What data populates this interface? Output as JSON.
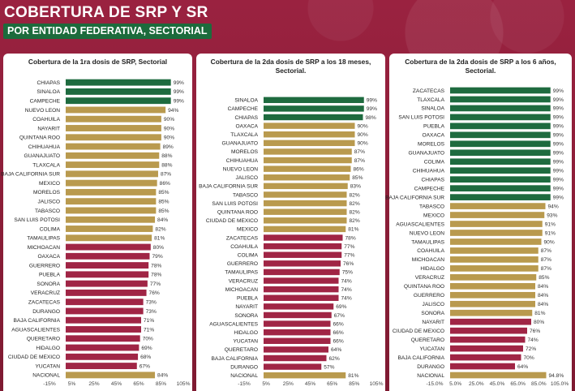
{
  "header": {
    "title": "COBERTURA DE SRP Y SR",
    "subtitle": "POR ENTIDAD FEDERATIVA, SECTORIAL"
  },
  "colors": {
    "high": "#1e6b3f",
    "mid": "#b99a4e",
    "low": "#a02545"
  },
  "chart_data": [
    {
      "type": "bar",
      "title": "Cobertura de la 1ra dosis de SRP, Sectorial",
      "categories": [
        "CHIAPAS",
        "SINALOA",
        "CAMPECHE",
        "NUEVO LEON",
        "COAHUILA",
        "NAYARIT",
        "QUINTANA ROO",
        "CHIHUAHUA",
        "GUANAJUATO",
        "TLAXCALA",
        "BAJA CALIFORNIA SUR",
        "MEXICO",
        "MORELOS",
        "JALISCO",
        "TABASCO",
        "SAN LUIS POTOSI",
        "COLIMA",
        "TAMAULIPAS",
        "MICHOACAN",
        "OAXACA",
        "GUERRERO",
        "PUEBLA",
        "SONORA",
        "VERACRUZ",
        "ZACATECAS",
        "DURANGO",
        "BAJA CALIFORNIA",
        "AGUASCALIENTES",
        "QUERETARO",
        "HIDALGO",
        "CIUDAD DE MEXICO",
        "YUCATAN",
        "NACIONAL"
      ],
      "values": [
        99,
        99,
        99,
        94,
        90,
        90,
        90,
        89,
        88,
        88,
        87,
        86,
        85,
        85,
        85,
        84,
        82,
        81,
        80,
        79,
        78,
        78,
        77,
        76,
        73,
        73,
        71,
        71,
        70,
        69,
        68,
        67,
        84
      ],
      "value_labels": [
        "99%",
        "99%",
        "99%",
        "94%",
        "90%",
        "90%",
        "90%",
        "89%",
        "88%",
        "88%",
        "87%",
        "86%",
        "85%",
        "85%",
        "85%",
        "84%",
        "82%",
        "81%",
        "80%",
        "79%",
        "78%",
        "78%",
        "77%",
        "76%",
        "73%",
        "73%",
        "71%",
        "71%",
        "70%",
        "69%",
        "68%",
        "67%",
        "84%"
      ],
      "groups": [
        "high",
        "high",
        "high",
        "mid",
        "mid",
        "mid",
        "mid",
        "mid",
        "mid",
        "mid",
        "mid",
        "mid",
        "mid",
        "mid",
        "mid",
        "mid",
        "mid",
        "mid",
        "low",
        "low",
        "low",
        "low",
        "low",
        "low",
        "low",
        "low",
        "low",
        "low",
        "low",
        "low",
        "low",
        "low",
        "mid"
      ],
      "ticks": [
        "-15%",
        "5%",
        "25%",
        "45%",
        "65%",
        "85%",
        "105%"
      ],
      "xlim": [
        -15,
        105
      ]
    },
    {
      "type": "bar",
      "title": "Cobertura de la 2da dosis de SRP a los 18 meses, Sectorial.",
      "categories": [
        "SINALOA",
        "CAMPECHE",
        "CHIAPAS",
        "OAXACA",
        "TLAXCALA",
        "GUANAJUATO",
        "MORELOS",
        "CHIHUAHUA",
        "NUEVO LEON",
        "JALISCO",
        "BAJA CALIFORNIA SUR",
        "TABASCO",
        "SAN LUIS POTOSI",
        "QUINTANA ROO",
        "CIUDAD DE MEXICO",
        "MEXICO",
        "ZACATECAS",
        "COAHUILA",
        "COLIMA",
        "GUERRERO",
        "TAMAULIPAS",
        "VERACRUZ",
        "MICHOACAN",
        "PUEBLA",
        "NAYARIT",
        "SONORA",
        "AGUASCALIENTES",
        "HIDALGO",
        "YUCATAN",
        "QUERETARO",
        "BAJA CALIFORNIA",
        "DURANGO",
        "NACIONAL"
      ],
      "values": [
        99,
        99,
        98,
        90,
        90,
        90,
        87,
        87,
        86,
        85,
        83,
        82,
        82,
        82,
        82,
        81,
        78,
        77,
        77,
        76,
        75,
        74,
        74,
        74,
        69,
        67,
        66,
        66,
        66,
        64,
        62,
        57,
        81
      ],
      "value_labels": [
        "99%",
        "99%",
        "98%",
        "90%",
        "90%",
        "90%",
        "87%",
        "87%",
        "86%",
        "85%",
        "83%",
        "82%",
        "82%",
        "82%",
        "82%",
        "81%",
        "78%",
        "77%",
        "77%",
        "76%",
        "75%",
        "74%",
        "74%",
        "74%",
        "69%",
        "67%",
        "66%",
        "66%",
        "66%",
        "64%",
        "62%",
        "57%",
        "81%"
      ],
      "groups": [
        "high",
        "high",
        "high",
        "mid",
        "mid",
        "mid",
        "mid",
        "mid",
        "mid",
        "mid",
        "mid",
        "mid",
        "mid",
        "mid",
        "mid",
        "mid",
        "low",
        "low",
        "low",
        "low",
        "low",
        "low",
        "low",
        "low",
        "low",
        "low",
        "low",
        "low",
        "low",
        "low",
        "low",
        "low",
        "mid"
      ],
      "ticks": [
        "-15%",
        "5%",
        "25%",
        "45%",
        "65%",
        "85%",
        "105%"
      ],
      "xlim": [
        -15,
        105
      ]
    },
    {
      "type": "bar",
      "title": "Cobertura de la 2da dosis de SRP a los 6 años, Sectorial.",
      "categories": [
        "ZACATECAS",
        "TLAXCALA",
        "SINALOA",
        "SAN LUIS POTOSI",
        "PUEBLA",
        "OAXACA",
        "MORELOS",
        "GUANAJUATO",
        "COLIMA",
        "CHIHUAHUA",
        "CHIAPAS",
        "CAMPECHE",
        "BAJA CALIFORNIA SUR",
        "TABASCO",
        "MEXICO",
        "AGUASCALIENTES",
        "NUEVO LEON",
        "TAMAULIPAS",
        "COAHUILA",
        "MICHOACAN",
        "HIDALGO",
        "VERACRUZ",
        "QUINTANA ROO",
        "GUERRERO",
        "JALISCO",
        "SONORA",
        "NAYARIT",
        "CIUDAD DE MEXICO",
        "QUERETARO",
        "YUCATAN",
        "BAJA CALIFORNIA",
        "DURANGO",
        "NACIONAL"
      ],
      "values": [
        99,
        99,
        99,
        99,
        99,
        99,
        99,
        99,
        99,
        99,
        99,
        99,
        99,
        94,
        93,
        91,
        91,
        90,
        87,
        87,
        87,
        85,
        84,
        84,
        84,
        81,
        80,
        76,
        74,
        72,
        70,
        64,
        94.8
      ],
      "value_labels": [
        "99%",
        "99%",
        "99%",
        "99%",
        "99%",
        "99%",
        "99%",
        "99%",
        "99%",
        "99%",
        "99%",
        "99%",
        "99%",
        "94%",
        "93%",
        "91%",
        "91%",
        "90%",
        "87%",
        "87%",
        "87%",
        "85%",
        "84%",
        "84%",
        "84%",
        "81%",
        "80%",
        "76%",
        "74%",
        "72%",
        "70%",
        "64%",
        "94.8%"
      ],
      "groups": [
        "high",
        "high",
        "high",
        "high",
        "high",
        "high",
        "high",
        "high",
        "high",
        "high",
        "high",
        "high",
        "high",
        "mid",
        "mid",
        "mid",
        "mid",
        "mid",
        "mid",
        "mid",
        "mid",
        "mid",
        "mid",
        "mid",
        "mid",
        "mid",
        "low",
        "low",
        "low",
        "low",
        "low",
        "low",
        "mid"
      ],
      "ticks": [
        "-15.0%",
        "5.0%",
        "25.0%",
        "45.0%",
        "65.0%",
        "85.0%",
        "105.0%"
      ],
      "xlim": [
        -15,
        105
      ]
    }
  ]
}
